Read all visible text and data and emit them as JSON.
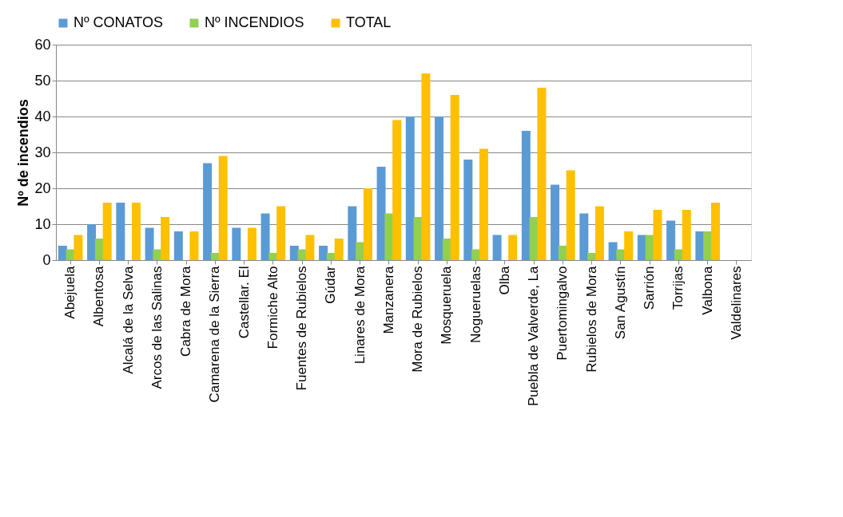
{
  "chart_data": {
    "type": "bar",
    "ylabel": "Nº de incendios",
    "categories": [
      "Abejuela",
      "Albentosa",
      "Alcalá de la Selva",
      "Arcos de las Salinas",
      "Cabra de Mora",
      "Camarena de la Sierra",
      "Castellar. El",
      "Formiche Alto",
      "Fuentes de Rubielos",
      "Gúdar",
      "Linares de Mora",
      "Manzanera",
      "Mora de Rubielos",
      "Mosqueruela",
      "Nogueruelas",
      "Olba",
      "Puebla de Valverde, La",
      "Puertomingalvo",
      "Rubielos de Mora",
      "San Agustín",
      "Sarrión",
      "Torrijas",
      "Valbona",
      "Valdelinares"
    ],
    "series": [
      {
        "name": "Nº CONATOS",
        "color": "#5b9bd5",
        "values": [
          4,
          10,
          16,
          9,
          8,
          27,
          9,
          13,
          4,
          4,
          15,
          26,
          40,
          40,
          28,
          7,
          36,
          21,
          13,
          5,
          7,
          11,
          8,
          0
        ]
      },
      {
        "name": "Nº INCENDIOS",
        "color": "#92d050",
        "values": [
          3,
          6,
          0,
          3,
          0,
          2,
          0,
          2,
          3,
          2,
          5,
          13,
          12,
          6,
          3,
          0,
          12,
          4,
          2,
          3,
          7,
          3,
          8,
          0
        ]
      },
      {
        "name": "TOTAL",
        "color": "#ffc000",
        "values": [
          7,
          16,
          16,
          12,
          8,
          29,
          9,
          15,
          7,
          6,
          20,
          39,
          52,
          46,
          31,
          7,
          48,
          25,
          15,
          8,
          14,
          14,
          16,
          0
        ]
      }
    ],
    "ylim": [
      0,
      60
    ],
    "yticks": [
      0,
      10,
      20,
      30,
      40,
      50,
      60
    ],
    "grid": "y",
    "legend": "top"
  }
}
